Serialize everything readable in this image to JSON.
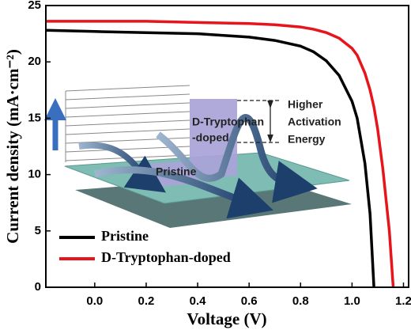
{
  "chart_data": {
    "type": "line",
    "x_label": "Voltage (V)",
    "y_label": "Current density (mA·cm⁻²)",
    "x": [
      -0.19,
      0,
      0.2,
      0.4,
      0.6,
      0.7,
      0.8,
      0.85,
      0.9,
      0.95,
      1.0,
      1.02,
      1.05,
      1.07,
      1.085,
      1.1,
      1.12,
      1.145,
      1.16
    ],
    "series": [
      {
        "name": "Pristine",
        "color": "#000000",
        "values": [
          22.8,
          22.7,
          22.6,
          22.5,
          22.2,
          21.9,
          21.4,
          20.9,
          20.1,
          18.8,
          16.5,
          15,
          11,
          6.5,
          0,
          null,
          null,
          null,
          null
        ]
      },
      {
        "name": "D-Tryptophan-doped",
        "color": "#e8141c",
        "values": [
          23.6,
          23.6,
          23.6,
          23.5,
          23.4,
          23.3,
          23.1,
          22.9,
          22.6,
          22.1,
          21.2,
          20.6,
          19,
          17.5,
          16,
          14,
          10.5,
          5,
          0
        ]
      }
    ],
    "xlim": [
      -0.19,
      1.22
    ],
    "ylim": [
      0,
      25
    ],
    "xticks": [
      {
        "value": 0,
        "label": "0.0"
      },
      {
        "value": 0.2,
        "label": "0.2"
      },
      {
        "value": 0.4,
        "label": "0.4"
      },
      {
        "value": 0.6,
        "label": "0.6"
      },
      {
        "value": 0.8,
        "label": "0.8"
      },
      {
        "value": 1.0,
        "label": "1.0"
      },
      {
        "value": 1.2,
        "label": "1.2"
      }
    ],
    "yticks": [
      0,
      5,
      10,
      15,
      20,
      25
    ],
    "legend": "lower left",
    "annotations": [
      "D-Tryptophan",
      "-doped",
      "Higher",
      "Activation",
      "Energy",
      "Pristine"
    ]
  }
}
